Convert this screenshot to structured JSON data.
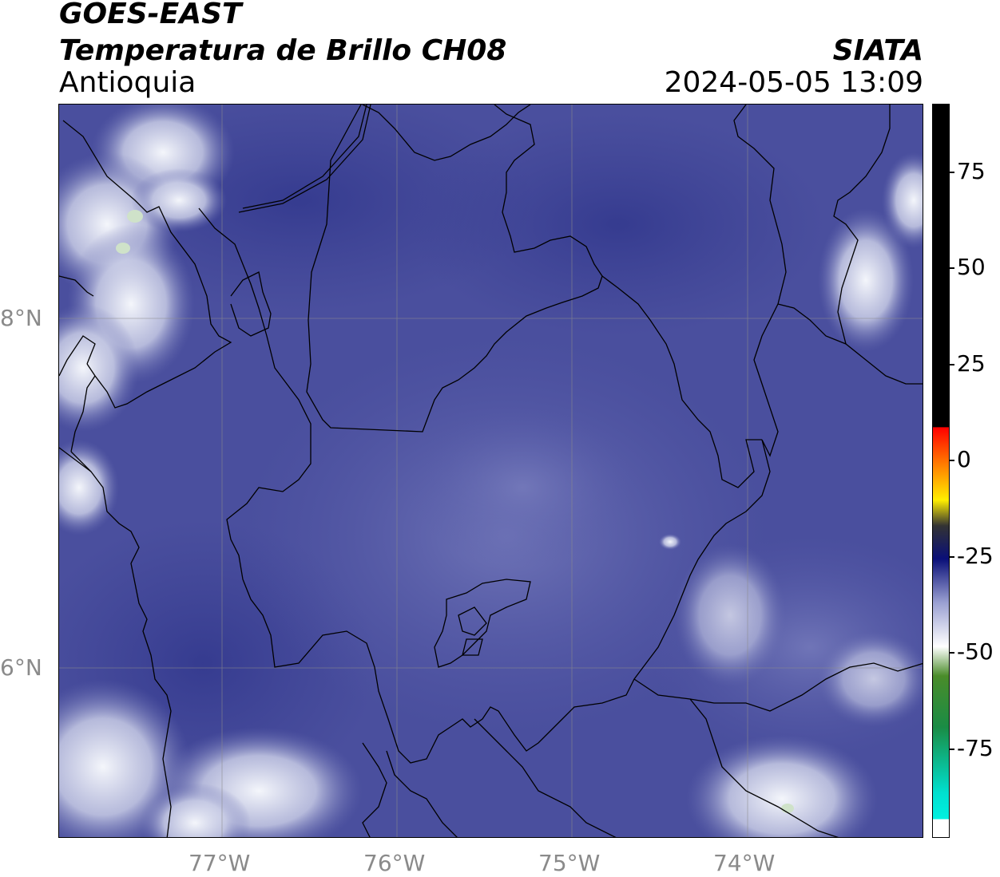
{
  "header": {
    "satellite": "GOES-EAST",
    "product": "Temperatura de Brillo CH08",
    "region": "Antioquia",
    "organization": "SIATA",
    "datetime": "2024-05-05 13:09"
  },
  "map": {
    "lon_ticks": [
      "77°W",
      "76°W",
      "75°W",
      "74°W"
    ],
    "lat_ticks": [
      "8°N",
      "6°N"
    ],
    "colors": {
      "background": "#3f4496",
      "boundaries": "#000000",
      "gridlines": "#8c8c8c",
      "cold_clouds": "#e9ecf5",
      "coldest_tops": "#cfe2c9"
    }
  },
  "colorbar": {
    "ticks": [
      "75",
      "50",
      "25",
      "0",
      "-25",
      "-50",
      "-75"
    ],
    "stops": [
      {
        "t": 0.0,
        "c": "#000000"
      },
      {
        "t": 0.44,
        "c": "#000000"
      },
      {
        "t": 0.441,
        "c": "#ff0000"
      },
      {
        "t": 0.49,
        "c": "#ff7a00"
      },
      {
        "t": 0.54,
        "c": "#ffee00"
      },
      {
        "t": 0.575,
        "c": "#333333"
      },
      {
        "t": 0.62,
        "c": "#0a0f78"
      },
      {
        "t": 0.68,
        "c": "#9aa0d2"
      },
      {
        "t": 0.74,
        "c": "#ffffff"
      },
      {
        "t": 0.78,
        "c": "#4a8c2a"
      },
      {
        "t": 0.85,
        "c": "#1a8c45"
      },
      {
        "t": 0.94,
        "c": "#00e0d0"
      },
      {
        "t": 0.975,
        "c": "#00f0e0"
      },
      {
        "t": 0.976,
        "c": "#ffffff"
      },
      {
        "t": 1.0,
        "c": "#ffffff"
      }
    ]
  }
}
